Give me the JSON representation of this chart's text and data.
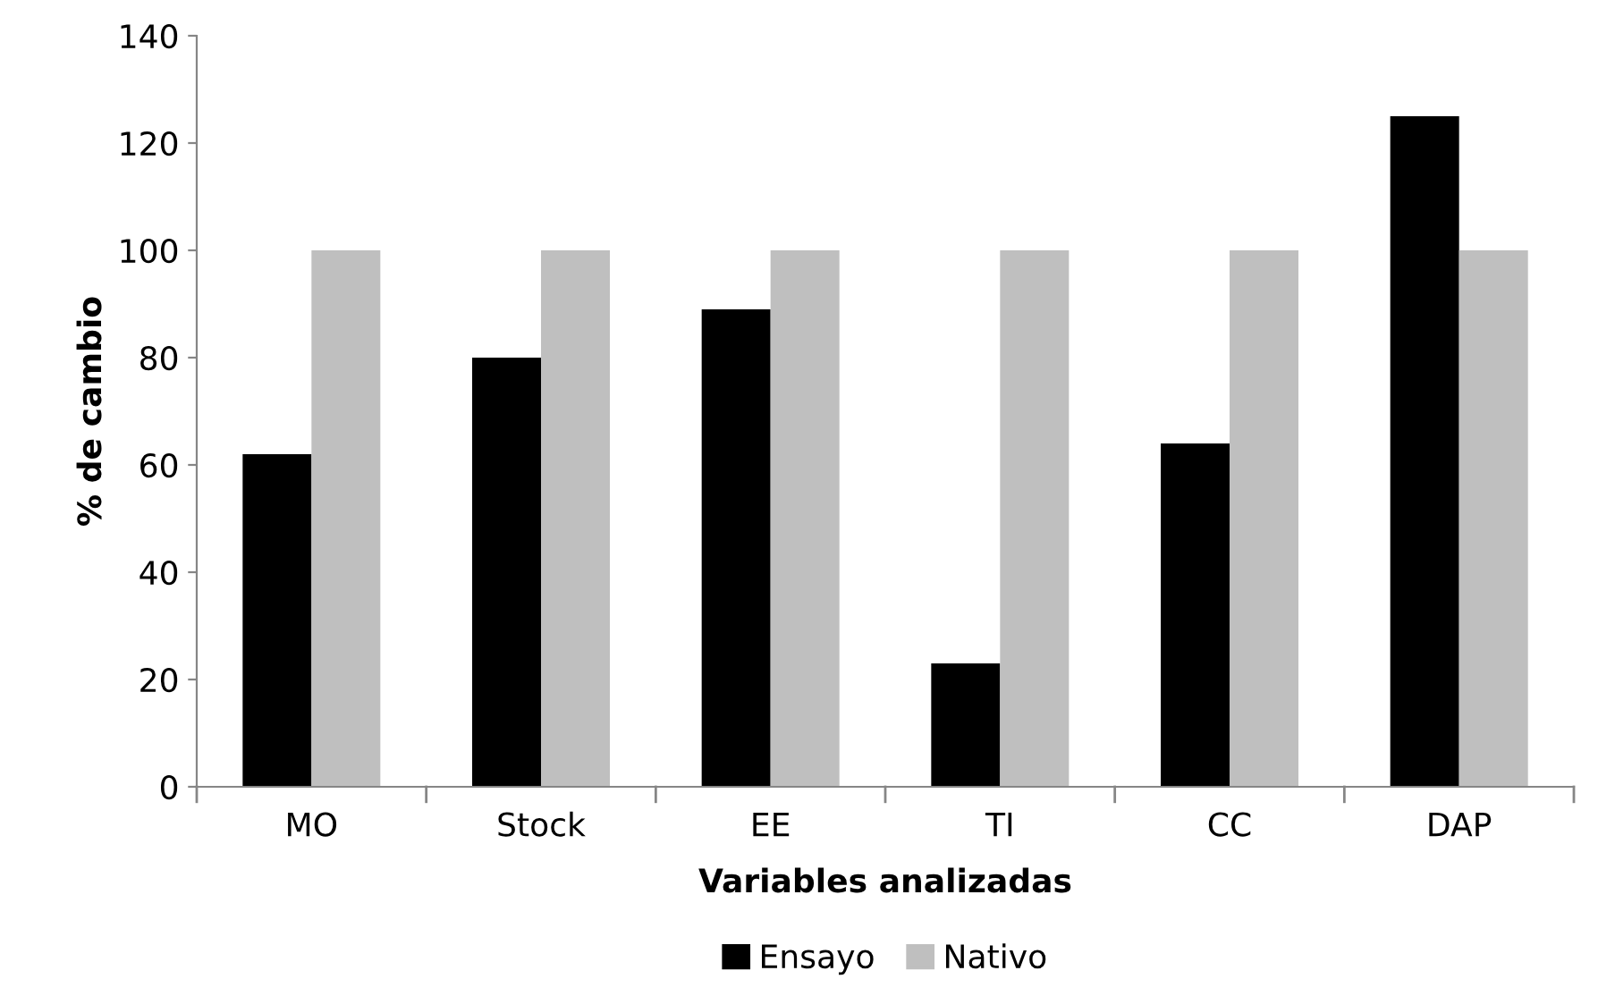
{
  "chart_data": {
    "type": "bar",
    "xlabel": "Variables analizadas",
    "ylabel": "% de cambio",
    "categories": [
      "MO",
      "Stock",
      "EE",
      "TI",
      "CC",
      "DAP"
    ],
    "series": [
      {
        "name": "Ensayo",
        "color": "#000000",
        "values": [
          62,
          80,
          89,
          23,
          64,
          125
        ]
      },
      {
        "name": "Nativo",
        "color": "#bfbfbf",
        "values": [
          100,
          100,
          100,
          100,
          100,
          100
        ]
      }
    ],
    "ylim": [
      0,
      140
    ],
    "yticks": [
      0,
      20,
      40,
      60,
      80,
      100,
      120,
      140
    ],
    "grid": false,
    "legend": "bottom"
  }
}
